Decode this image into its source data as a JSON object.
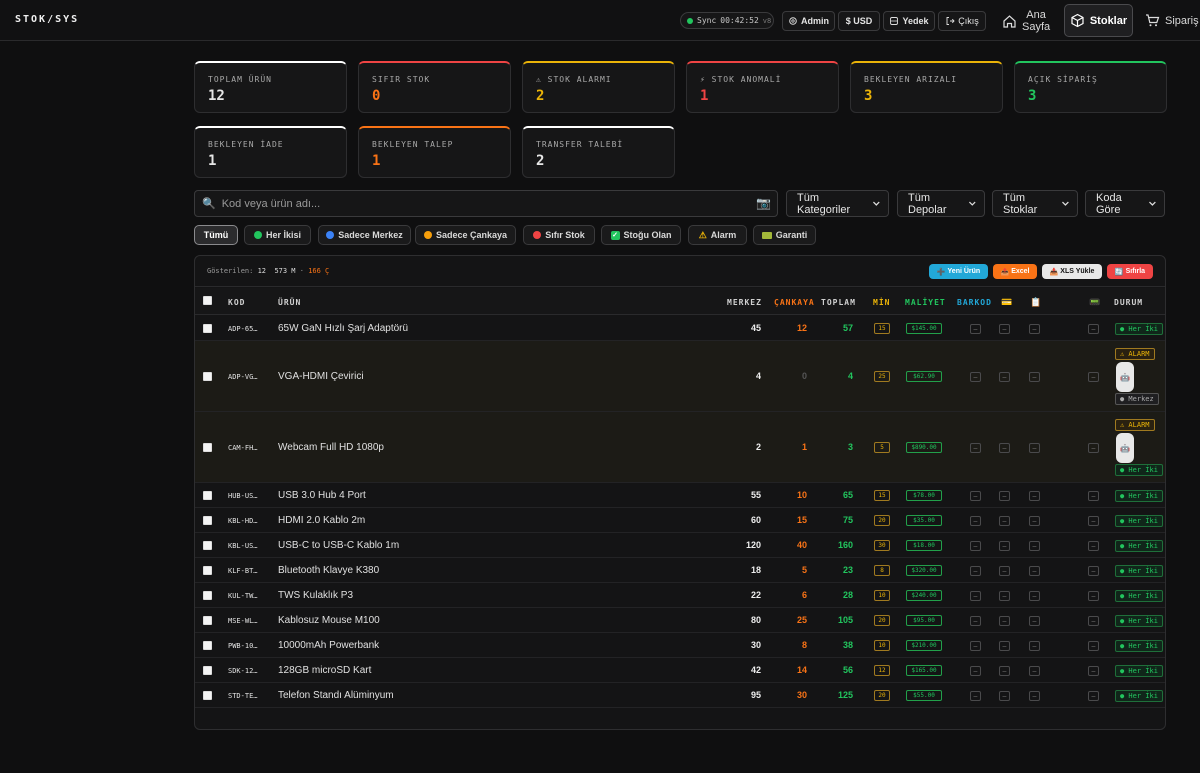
{
  "brand": "STOK/SYS",
  "topbar": {
    "sync_label": "Sync",
    "sync_time": "00:42:52",
    "sync_version": "v8",
    "admin": "Admin",
    "currency": "$ USD",
    "backup": "Yedek",
    "logout": "Çıkış",
    "nav_home_1": "Ana",
    "nav_home_2": "Sayfa",
    "nav_stock": "Stoklar",
    "nav_orders": "Sipariş"
  },
  "stats": [
    {
      "label": "TOPLAM ÜRÜN",
      "value": "12",
      "color": "#e6e6e6"
    },
    {
      "label": "SIFIR STOK",
      "value": "0",
      "color": "#f97316"
    },
    {
      "label": "⚠ STOK ALARMI",
      "value": "2",
      "color": "#eab308"
    },
    {
      "label": "⚡ STOK ANOMALİ",
      "value": "1",
      "color": "#ef4444"
    },
    {
      "label": "BEKLEYEN ARIZALI",
      "value": "3",
      "color": "#eab308"
    },
    {
      "label": "AÇIK SİPARİŞ",
      "value": "3",
      "color": "#22c55e"
    },
    {
      "label": "BEKLEYEN İADE",
      "value": "1",
      "color": "#e6e6e6"
    },
    {
      "label": "BEKLEYEN TALEP",
      "value": "1",
      "color": "#f97316"
    },
    {
      "label": "TRANSFER TALEBİ",
      "value": "2",
      "color": "#e6e6e6"
    }
  ],
  "search": {
    "placeholder": "Kod veya ürün adı..."
  },
  "selects": {
    "category": "Tüm Kategoriler",
    "depot": "Tüm Depolar",
    "stock": "Tüm Stoklar",
    "sort": "Koda Göre"
  },
  "filters": [
    "Tümü",
    "Her İkisi",
    "Sadece Merkez",
    "Sadece Çankaya",
    "Sıfır Stok",
    "Stoğu Olan",
    "Alarm",
    "Garanti"
  ],
  "panel": {
    "shown_label": "Gösterilen:",
    "shown_count": "12",
    "merkez_count": "573 M",
    "sep": "·",
    "cankaya_count": "166 Ç",
    "new_product": "Yeni Ürün",
    "excel": "Excel",
    "xls_upload": "XLS Yükle",
    "reset": "Sıfırla"
  },
  "columns": {
    "kod": "KOD",
    "urun": "ÜRÜN",
    "merkez": "MERKEZ",
    "cankaya": "ÇANKAYA",
    "toplam": "TOPLAM",
    "min": "MİN",
    "maliyet": "MALİYET",
    "barkod": "BARKOD",
    "durum": "DURUM"
  },
  "rows": [
    {
      "code": "ADP-65…",
      "name": "65W GaN Hızlı Şarj Adaptörü",
      "merkez": "45",
      "cankaya": "12",
      "toplam": "57",
      "min": "15",
      "cost": "$145.00",
      "status": "● Her İki"
    },
    {
      "code": "ADP-VG…",
      "name": "VGA-HDMI Çevirici",
      "merkez": "4",
      "cankaya": "0",
      "toplam": "4",
      "min": "25",
      "cost": "$62.90",
      "status": "● Merkez",
      "alarm": "⚠ ALARM"
    },
    {
      "code": "CAM-FH…",
      "name": "Webcam Full HD 1080p",
      "merkez": "2",
      "cankaya": "1",
      "toplam": "3",
      "min": "5",
      "cost": "$890.00",
      "status": "● Her İki",
      "alarm": "⚠ ALARM"
    },
    {
      "code": "HUB-US…",
      "name": "USB 3.0 Hub 4 Port",
      "merkez": "55",
      "cankaya": "10",
      "toplam": "65",
      "min": "15",
      "cost": "$78.00",
      "status": "● Her İki"
    },
    {
      "code": "KBL-HD…",
      "name": "HDMI 2.0 Kablo 2m",
      "merkez": "60",
      "cankaya": "15",
      "toplam": "75",
      "min": "20",
      "cost": "$35.00",
      "status": "● Her İki"
    },
    {
      "code": "KBL-US…",
      "name": "USB-C to USB-C Kablo 1m",
      "merkez": "120",
      "cankaya": "40",
      "toplam": "160",
      "min": "30",
      "cost": "$18.00",
      "status": "● Her İki"
    },
    {
      "code": "KLF-BT…",
      "name": "Bluetooth Klavye K380",
      "merkez": "18",
      "cankaya": "5",
      "toplam": "23",
      "min": "8",
      "cost": "$320.00",
      "status": "● Her İki"
    },
    {
      "code": "KUL-TW…",
      "name": "TWS Kulaklık P3",
      "merkez": "22",
      "cankaya": "6",
      "toplam": "28",
      "min": "10",
      "cost": "$240.00",
      "status": "● Her İki"
    },
    {
      "code": "MSE-WL…",
      "name": "Kablosuz Mouse M100",
      "merkez": "80",
      "cankaya": "25",
      "toplam": "105",
      "min": "20",
      "cost": "$95.00",
      "status": "● Her İki"
    },
    {
      "code": "PWB-10…",
      "name": "10000mAh Powerbank",
      "merkez": "30",
      "cankaya": "8",
      "toplam": "38",
      "min": "10",
      "cost": "$210.00",
      "status": "● Her İki"
    },
    {
      "code": "SDK-12…",
      "name": "128GB microSD Kart",
      "merkez": "42",
      "cankaya": "14",
      "toplam": "56",
      "min": "12",
      "cost": "$165.00",
      "status": "● Her İki"
    },
    {
      "code": "STD-TE…",
      "name": "Telefon Standı Alüminyum",
      "merkez": "95",
      "cankaya": "30",
      "toplam": "125",
      "min": "20",
      "cost": "$55.00",
      "status": "● Her İki"
    }
  ],
  "dash": "–",
  "robot_icon": "🤖"
}
